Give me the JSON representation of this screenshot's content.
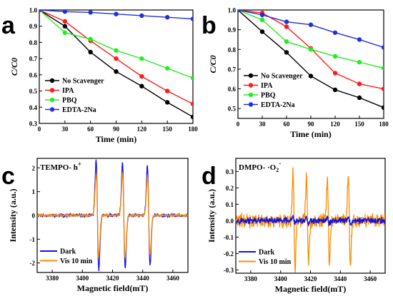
{
  "chart_data": [
    {
      "panel": "a",
      "type": "line",
      "xlabel": "Time (min)",
      "ylabel": "C/C0",
      "xlim": [
        0,
        180
      ],
      "ylim": [
        0.3,
        1.0
      ],
      "xticks": [
        0,
        30,
        60,
        90,
        120,
        150,
        180
      ],
      "yticks": [
        0.3,
        0.4,
        0.5,
        0.6,
        0.7,
        0.8,
        0.9,
        1.0
      ],
      "ytick_labels": [
        "0.3",
        "0.4",
        "0.5",
        "0.6",
        "0.7",
        "0.8",
        "0.9",
        "1.0"
      ],
      "legend_position": "lower-left",
      "x": [
        0,
        30,
        60,
        90,
        120,
        150,
        180
      ],
      "series": [
        {
          "name": "No Scavenger",
          "color": "#000000",
          "values": [
            1.0,
            0.9,
            0.74,
            0.62,
            0.53,
            0.43,
            0.34
          ]
        },
        {
          "name": "IPA",
          "color": "#ff1a1a",
          "values": [
            1.0,
            0.93,
            0.81,
            0.7,
            0.59,
            0.5,
            0.42
          ]
        },
        {
          "name": "PBQ",
          "color": "#22ee22",
          "values": [
            1.0,
            0.86,
            0.82,
            0.75,
            0.7,
            0.64,
            0.58
          ]
        },
        {
          "name": "EDTA-2Na",
          "color": "#2030e0",
          "values": [
            1.0,
            0.99,
            0.985,
            0.975,
            0.965,
            0.955,
            0.945
          ]
        }
      ]
    },
    {
      "panel": "b",
      "type": "line",
      "xlabel": "Time (min)",
      "ylabel": "C/C0",
      "xlim": [
        0,
        180
      ],
      "ylim": [
        0.45,
        1.0
      ],
      "xticks": [
        0,
        30,
        60,
        90,
        120,
        150,
        180
      ],
      "yticks": [
        0.5,
        0.6,
        0.7,
        0.8,
        0.9,
        1.0
      ],
      "ytick_labels": [
        "0.5",
        "0.6",
        "0.7",
        "0.8",
        "0.9",
        "1.0"
      ],
      "legend_position": "lower-left",
      "x": [
        0,
        30,
        60,
        90,
        120,
        150,
        180
      ],
      "series": [
        {
          "name": "No Scavenger",
          "color": "#000000",
          "values": [
            1.0,
            0.89,
            0.785,
            0.665,
            0.595,
            0.555,
            0.505
          ]
        },
        {
          "name": "IPA",
          "color": "#ff1a1a",
          "values": [
            1.0,
            0.985,
            0.915,
            0.805,
            0.68,
            0.625,
            0.6
          ]
        },
        {
          "name": "PBQ",
          "color": "#22ee22",
          "values": [
            1.0,
            0.95,
            0.84,
            0.8,
            0.765,
            0.735,
            0.705
          ]
        },
        {
          "name": "EDTA-2Na",
          "color": "#2030e0",
          "values": [
            1.0,
            0.975,
            0.94,
            0.925,
            0.885,
            0.85,
            0.81
          ]
        }
      ]
    },
    {
      "panel": "c",
      "type": "line",
      "annotation": "TEMPO- h",
      "annotation_sup": "+",
      "xlabel": "Magnetic field(mT)",
      "ylabel": "Intensity (a.u.)",
      "xlim": [
        3370,
        3470
      ],
      "ylim": [
        -2.4,
        2.4
      ],
      "xticks": [
        3380,
        3400,
        3420,
        3440,
        3460
      ],
      "yticks": [
        -2,
        -1,
        0,
        1,
        2
      ],
      "ytick_labels": [
        "-2",
        "-1",
        "0",
        "1",
        "2"
      ],
      "legend_position": "lower-left",
      "lines": [
        {
          "center": 3410,
          "width": 0.9
        },
        {
          "center": 3427.5,
          "width": 0.9
        },
        {
          "center": 3444,
          "width": 0.9
        }
      ],
      "series": [
        {
          "name": "Dark",
          "color": "#1414e0",
          "amplitudes": [
            2.3,
            2.2,
            2.1
          ],
          "noise": 0.09
        },
        {
          "name": "Vis 10 min",
          "color": "#ff8c00",
          "amplitudes": [
            1.75,
            1.8,
            1.65
          ],
          "noise": 0.07
        }
      ]
    },
    {
      "panel": "d",
      "type": "line",
      "annotation": "DMPO- ·O",
      "annotation_sub": "2",
      "annotation_sup": "-",
      "xlabel": "Magnetic field(mT)",
      "ylabel": "Intensity (a.u.)",
      "xlim": [
        3370,
        3470
      ],
      "ylim": [
        -0.32,
        0.38
      ],
      "xticks": [
        3380,
        3400,
        3420,
        3440,
        3460
      ],
      "yticks": [
        -0.3,
        -0.2,
        -0.1,
        0.0,
        0.1,
        0.2,
        0.3
      ],
      "ytick_labels": [
        "-0.3",
        "-0.2",
        "-0.1",
        "0.0",
        "0.1",
        "0.2",
        "0.3"
      ],
      "legend_position": "lower-left",
      "lines": [
        {
          "center": 3409,
          "width": 0.7
        },
        {
          "center": 3418,
          "width": 0.7
        },
        {
          "center": 3432,
          "width": 0.7
        },
        {
          "center": 3446,
          "width": 0.7
        }
      ],
      "series": [
        {
          "name": "Dark",
          "color": "#1414e0",
          "amplitudes": [
            0.02,
            0.02,
            0.02,
            0.02
          ],
          "noise": 0.022
        },
        {
          "name": "Vis 10 min",
          "color": "#ff8c00",
          "amplitudes": [
            0.29,
            0.26,
            0.27,
            0.27
          ],
          "noise": 0.05
        }
      ]
    }
  ]
}
